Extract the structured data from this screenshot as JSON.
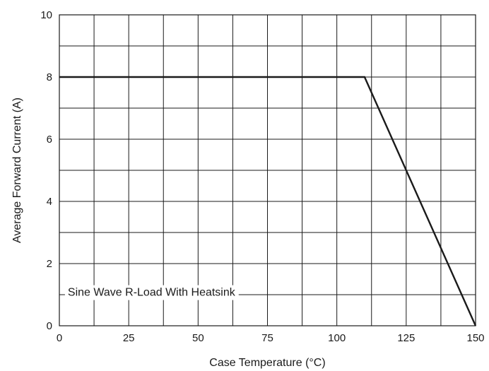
{
  "chart_data": {
    "type": "line",
    "title": "",
    "xlabel": "Case Temperature (°C)",
    "ylabel": "Average Forward Current (A)",
    "xlim": [
      0,
      150
    ],
    "ylim": [
      0,
      10
    ],
    "x_ticks": [
      0,
      25,
      50,
      75,
      100,
      125,
      150
    ],
    "y_ticks": [
      0,
      2,
      4,
      6,
      8,
      10
    ],
    "grid": true,
    "grid_x_step": 12.5,
    "grid_y_step": 1,
    "series": [
      {
        "x": [
          0,
          110,
          150
        ],
        "y": [
          8,
          8,
          0
        ],
        "color": "#1a1a1a"
      }
    ],
    "annotation": {
      "text": "Sine Wave R-Load With Heatsink",
      "x": 1,
      "y": 1.1
    }
  }
}
